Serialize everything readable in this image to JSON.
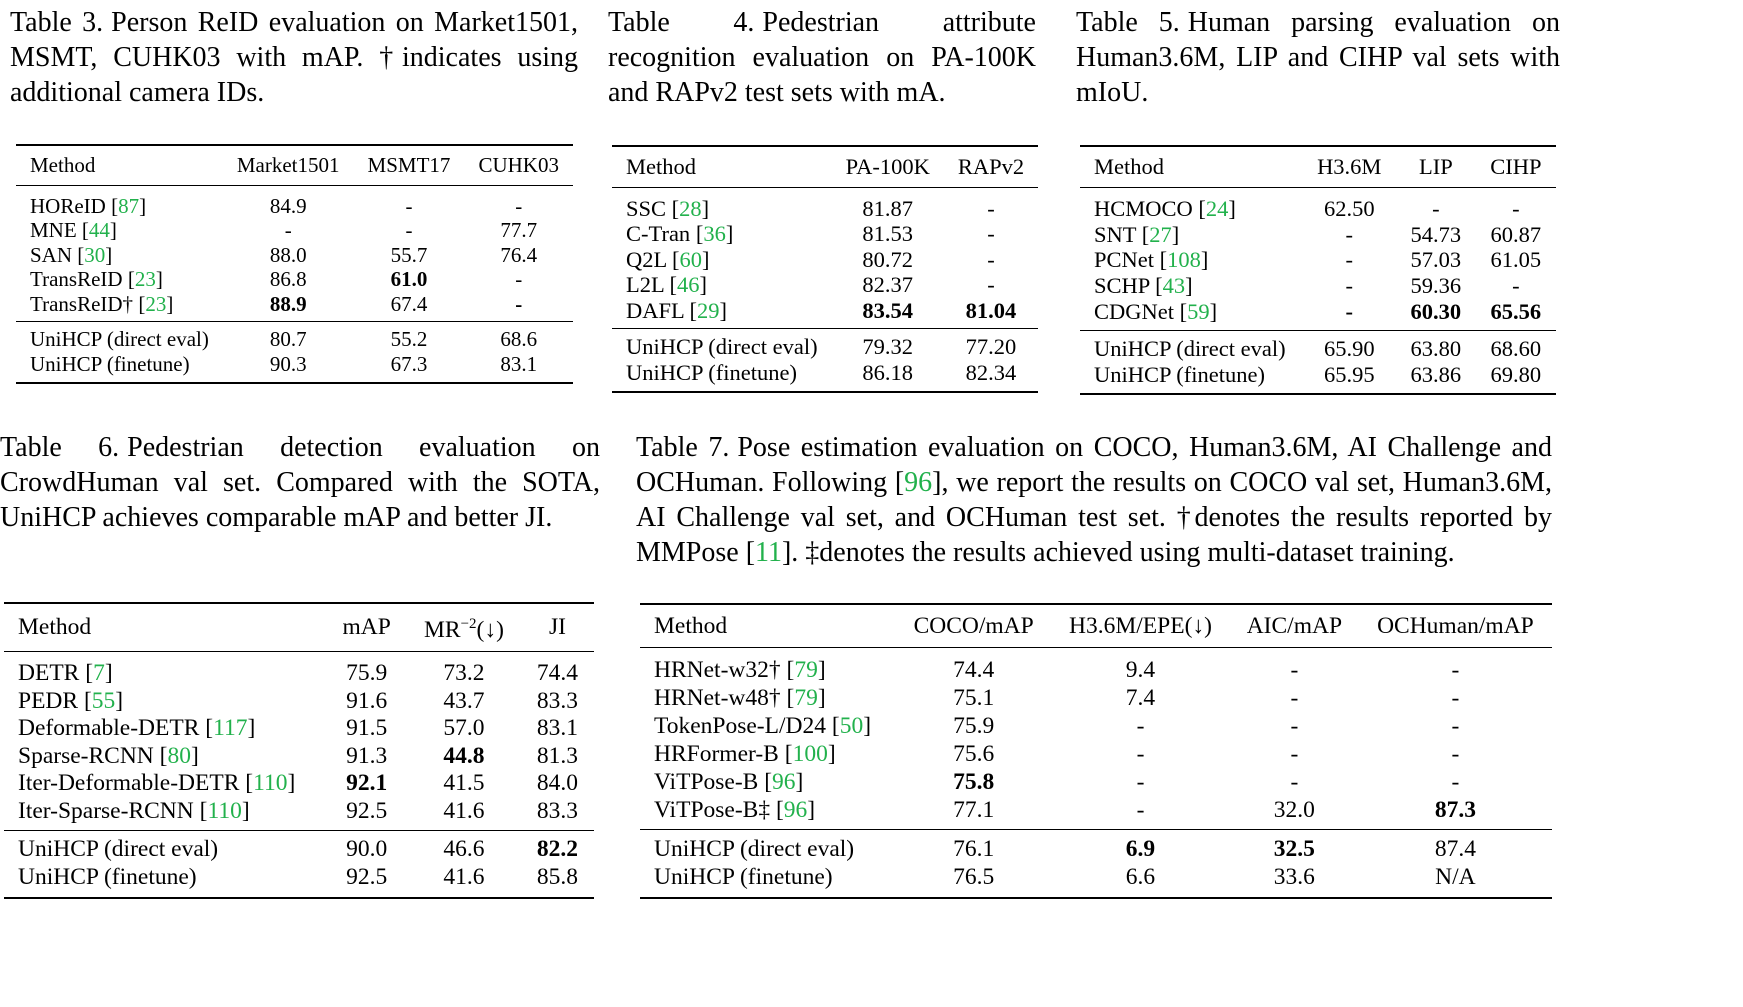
{
  "table3": {
    "label": "Table 3.",
    "caption": "Person ReID evaluation on Market1501, MSMT, CUHK03 with mAP. †indicates using additional camera IDs.",
    "headers": [
      "Method",
      "Market1501",
      "MSMT17",
      "CUHK03"
    ],
    "rows": [
      {
        "name": "HOReID",
        "cite": "87",
        "v": [
          "84.9",
          "-",
          "-"
        ]
      },
      {
        "name": "MNE",
        "cite": "44",
        "v": [
          "-",
          "-",
          "77.7"
        ]
      },
      {
        "name": "SAN",
        "cite": "30",
        "v": [
          "88.0",
          "55.7",
          "76.4"
        ]
      },
      {
        "name": "TransReID",
        "cite": "23",
        "v": [
          "86.8",
          "61.0",
          "-"
        ]
      },
      {
        "name": "TransReID†",
        "cite": "23",
        "v": [
          "88.9",
          "67.4",
          "-"
        ]
      }
    ],
    "ours": [
      {
        "name": "UniHCP (direct eval)",
        "v": [
          "80.7",
          "55.2",
          "68.6"
        ]
      },
      {
        "name": "UniHCP (finetune)",
        "v": [
          "90.3",
          "67.3",
          "83.1"
        ]
      }
    ]
  },
  "table4": {
    "label": "Table 4.",
    "caption": "Pedestrian attribute recognition evaluation on PA-100K and RAPv2 test sets with mA.",
    "headers": [
      "Method",
      "PA-100K",
      "RAPv2"
    ],
    "rows": [
      {
        "name": "SSC",
        "cite": "28",
        "v": [
          "81.87",
          "-"
        ]
      },
      {
        "name": "C-Tran",
        "cite": "36",
        "v": [
          "81.53",
          "-"
        ]
      },
      {
        "name": "Q2L",
        "cite": "60",
        "v": [
          "80.72",
          "-"
        ]
      },
      {
        "name": "L2L",
        "cite": "46",
        "v": [
          "82.37",
          "-"
        ]
      },
      {
        "name": "DAFL",
        "cite": "29",
        "v": [
          "83.54",
          "81.04"
        ]
      }
    ],
    "ours": [
      {
        "name": "UniHCP (direct eval)",
        "v": [
          "79.32",
          "77.20"
        ]
      },
      {
        "name": "UniHCP (finetune)",
        "v": [
          "86.18",
          "82.34"
        ]
      }
    ]
  },
  "table5": {
    "label": "Table 5.",
    "caption": "Human parsing evaluation on Human3.6M, LIP and CIHP val sets with mIoU.",
    "headers": [
      "Method",
      "H3.6M",
      "LIP",
      "CIHP"
    ],
    "rows": [
      {
        "name": "HCMOCO",
        "cite": "24",
        "v": [
          "62.50",
          "-",
          "-"
        ]
      },
      {
        "name": "SNT",
        "cite": "27",
        "v": [
          "-",
          "54.73",
          "60.87"
        ]
      },
      {
        "name": "PCNet",
        "cite": "108",
        "v": [
          "-",
          "57.03",
          "61.05"
        ]
      },
      {
        "name": "SCHP",
        "cite": "43",
        "v": [
          "-",
          "59.36",
          "-"
        ]
      },
      {
        "name": "CDGNet",
        "cite": "59",
        "v": [
          "-",
          "60.30",
          "65.56"
        ]
      }
    ],
    "ours": [
      {
        "name": "UniHCP (direct eval)",
        "v": [
          "65.90",
          "63.80",
          "68.60"
        ]
      },
      {
        "name": "UniHCP (finetune)",
        "v": [
          "65.95",
          "63.86",
          "69.80"
        ]
      }
    ]
  },
  "table6": {
    "label": "Table 6.",
    "caption": "Pedestrian detection evaluation on CrowdHuman val set. Compared with the SOTA, UniHCP achieves comparable mAP and better JI.",
    "headers": [
      "Method",
      "mAP",
      "MR−2(↓)",
      "JI"
    ],
    "rows": [
      {
        "name": "DETR",
        "cite": "7",
        "v": [
          "75.9",
          "73.2",
          "74.4"
        ]
      },
      {
        "name": "PEDR",
        "cite": "55",
        "v": [
          "91.6",
          "43.7",
          "83.3"
        ]
      },
      {
        "name": "Deformable-DETR",
        "cite": "117",
        "v": [
          "91.5",
          "57.0",
          "83.1"
        ]
      },
      {
        "name": "Sparse-RCNN",
        "cite": "80",
        "v": [
          "91.3",
          "44.8",
          "81.3"
        ]
      },
      {
        "name": "Iter-Deformable-DETR",
        "cite": "110",
        "v": [
          "92.1",
          "41.5",
          "84.0"
        ]
      },
      {
        "name": "Iter-Sparse-RCNN",
        "cite": "110",
        "v": [
          "92.5",
          "41.6",
          "83.3"
        ]
      }
    ],
    "ours": [
      {
        "name": "UniHCP (direct eval)",
        "v": [
          "90.0",
          "46.6",
          "82.2"
        ]
      },
      {
        "name": "UniHCP (finetune)",
        "v": [
          "92.5",
          "41.6",
          "85.8"
        ]
      }
    ]
  },
  "table7": {
    "label": "Table 7.",
    "caption_a": "Pose estimation evaluation on COCO, Human3.6M, AI Challenge and OCHuman. Following [",
    "caption_cite1": "96",
    "caption_b": "], we report the results on COCO val set, Human3.6M, AI Challenge val set, and OCHuman test set. †denotes the results reported by MMPose [",
    "caption_cite2": "11",
    "caption_c": "]. ‡denotes the results achieved using multi-dataset training.",
    "headers": [
      "Method",
      "COCO/mAP",
      "H3.6M/EPE(↓)",
      "AIC/mAP",
      "OCHuman/mAP"
    ],
    "rows": [
      {
        "name": "HRNet-w32†",
        "cite": "79",
        "v": [
          "74.4",
          "9.4",
          "-",
          "-"
        ]
      },
      {
        "name": "HRNet-w48†",
        "cite": "79",
        "v": [
          "75.1",
          "7.4",
          "-",
          "-"
        ]
      },
      {
        "name": "TokenPose-L/D24",
        "cite": "50",
        "v": [
          "75.9",
          "-",
          "-",
          "-"
        ]
      },
      {
        "name": "HRFormer-B",
        "cite": "100",
        "v": [
          "75.6",
          "-",
          "-",
          "-"
        ]
      },
      {
        "name": "ViTPose-B",
        "cite": "96",
        "v": [
          "75.8",
          "-",
          "-",
          "-"
        ]
      },
      {
        "name": "ViTPose-B‡",
        "cite": "96",
        "v": [
          "77.1",
          "-",
          "32.0",
          "87.3"
        ]
      }
    ],
    "ours": [
      {
        "name": "UniHCP (direct eval)",
        "v": [
          "76.1",
          "6.9",
          "32.5",
          "87.4"
        ]
      },
      {
        "name": "UniHCP (finetune)",
        "v": [
          "76.5",
          "6.6",
          "33.6",
          "N/A"
        ]
      }
    ]
  },
  "bold": {
    "table3": [
      [
        4,
        2
      ],
      [
        5,
        1
      ],
      [
        5,
        3
      ]
    ],
    "table4": [
      [
        5,
        1
      ],
      [
        5,
        2
      ]
    ],
    "table5": [
      [
        5,
        1
      ],
      [
        5,
        2
      ],
      [
        5,
        3
      ]
    ],
    "table6": [
      [
        4,
        2
      ],
      [
        5,
        1
      ],
      [
        7,
        3
      ]
    ],
    "table7": [
      [
        5,
        1
      ],
      [
        6,
        4
      ],
      [
        7,
        2
      ],
      [
        7,
        3
      ]
    ]
  },
  "colors": {
    "citation": "#22b14c",
    "text": "#000000"
  }
}
